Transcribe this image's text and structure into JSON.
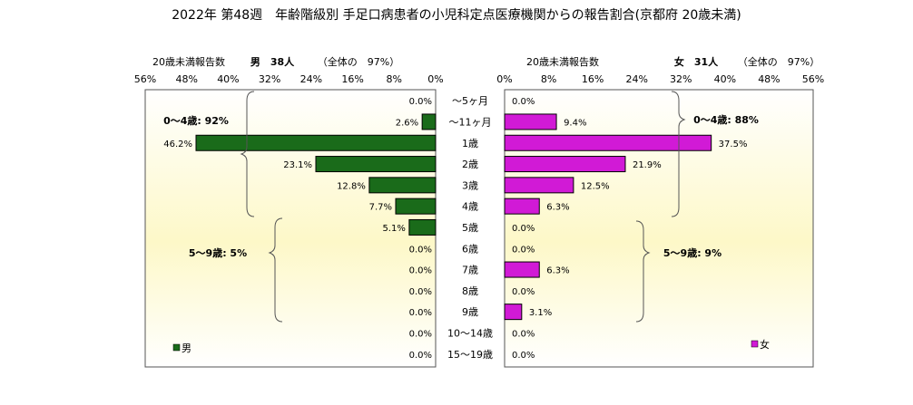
{
  "title": "2022年 第48週　年齢階級別 手足口病患者の小児科定点医療機関からの報告割合(京都府 20歳未満)",
  "chart_data": {
    "type": "bar",
    "orientation": "horizontal-population-pyramid",
    "categories": [
      "～5ヶ月",
      "～11ヶ月",
      "1歳",
      "2歳",
      "3歳",
      "4歳",
      "5歳",
      "6歳",
      "7歳",
      "8歳",
      "9歳",
      "10～14歳",
      "15～19歳"
    ],
    "xlim": [
      0,
      56
    ],
    "ticks": [
      0,
      8,
      16,
      24,
      32,
      40,
      48,
      56
    ],
    "tick_suffix": "%",
    "male": {
      "header_label": "20歳未満報告数",
      "header_title": "男　38人",
      "header_note": "（全体の　97%）",
      "legend": "男",
      "color": "#1a6b1a",
      "values": [
        0.0,
        2.6,
        46.2,
        23.1,
        12.8,
        7.7,
        5.1,
        0.0,
        0.0,
        0.0,
        0.0,
        0.0,
        0.0
      ],
      "value_labels": [
        "0.0%",
        "2.6%",
        "46.2%",
        "23.1%",
        "12.8%",
        "7.7%",
        "5.1%",
        "0.0%",
        "0.0%",
        "0.0%",
        "0.0%",
        "0.0%",
        "0.0%"
      ],
      "group_labels": [
        "0～4歳: 92%",
        "5～9歳: 5%"
      ]
    },
    "female": {
      "header_label": "20歳未満報告数",
      "header_title": "女　31人",
      "header_note": "（全体の　97%）",
      "legend": "女",
      "color": "#d11ad6",
      "values": [
        0.0,
        9.4,
        37.5,
        21.9,
        12.5,
        6.3,
        0.0,
        0.0,
        6.3,
        0.0,
        3.1,
        0.0,
        0.0
      ],
      "value_labels": [
        "0.0%",
        "9.4%",
        "37.5%",
        "21.9%",
        "12.5%",
        "6.3%",
        "0.0%",
        "0.0%",
        "6.3%",
        "0.0%",
        "3.1%",
        "0.0%",
        "0.0%"
      ],
      "group_labels": [
        "0～4歳: 88%",
        "5～9歳: 9%"
      ]
    }
  }
}
